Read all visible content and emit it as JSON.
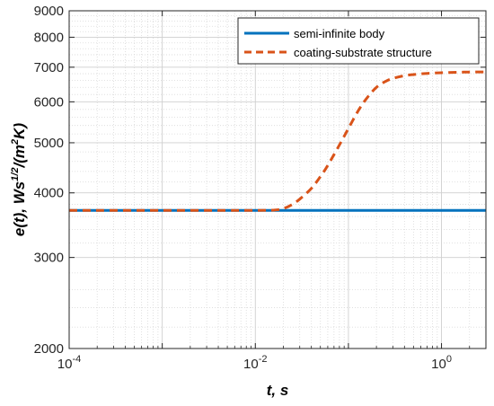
{
  "chart_data": {
    "type": "line",
    "x_scale": "log",
    "y_scale": "log",
    "xlim": [
      0.0001,
      3
    ],
    "ylim": [
      2000,
      9000
    ],
    "grid": true,
    "legend_position": "top-right",
    "x_ticks": [
      {
        "value": 0.0001,
        "base": "10",
        "exp": "-4"
      },
      {
        "value": 0.01,
        "base": "10",
        "exp": "-2"
      },
      {
        "value": 1,
        "base": "10",
        "exp": "0"
      }
    ],
    "y_ticks": [
      {
        "value": 2000,
        "label": "2000"
      },
      {
        "value": 3000,
        "label": "3000"
      },
      {
        "value": 4000,
        "label": "4000"
      },
      {
        "value": 5000,
        "label": "5000"
      },
      {
        "value": 6000,
        "label": "6000"
      },
      {
        "value": 7000,
        "label": "7000"
      },
      {
        "value": 8000,
        "label": "8000"
      },
      {
        "value": 9000,
        "label": "9000"
      }
    ],
    "xlabel": "t, s",
    "ylabel": {
      "prefix": "e(t), Ws",
      "sup1": "1/2",
      "mid": "/(m",
      "sup2": "2",
      "suffix": "K)"
    },
    "series": [
      {
        "name": "semi-infinite body",
        "color": "#0072BD",
        "style": "solid",
        "x": [
          0.0001,
          0.001,
          0.01,
          0.1,
          1,
          3
        ],
        "y": [
          3700,
          3700,
          3700,
          3700,
          3700,
          3700
        ]
      },
      {
        "name": "coating-substrate structure",
        "color": "#D95319",
        "style": "dashed",
        "x": [
          0.0001,
          0.001,
          0.01,
          0.016,
          0.02,
          0.025,
          0.03,
          0.04,
          0.05,
          0.06,
          0.08,
          0.1,
          0.13,
          0.16,
          0.2,
          0.25,
          0.3,
          0.4,
          0.5,
          0.7,
          1,
          1.5,
          2,
          3
        ],
        "y": [
          3700,
          3700,
          3700,
          3705,
          3730,
          3800,
          3890,
          4080,
          4300,
          4520,
          4950,
          5330,
          5800,
          6120,
          6400,
          6570,
          6660,
          6740,
          6775,
          6810,
          6830,
          6845,
          6850,
          6855
        ]
      }
    ]
  }
}
